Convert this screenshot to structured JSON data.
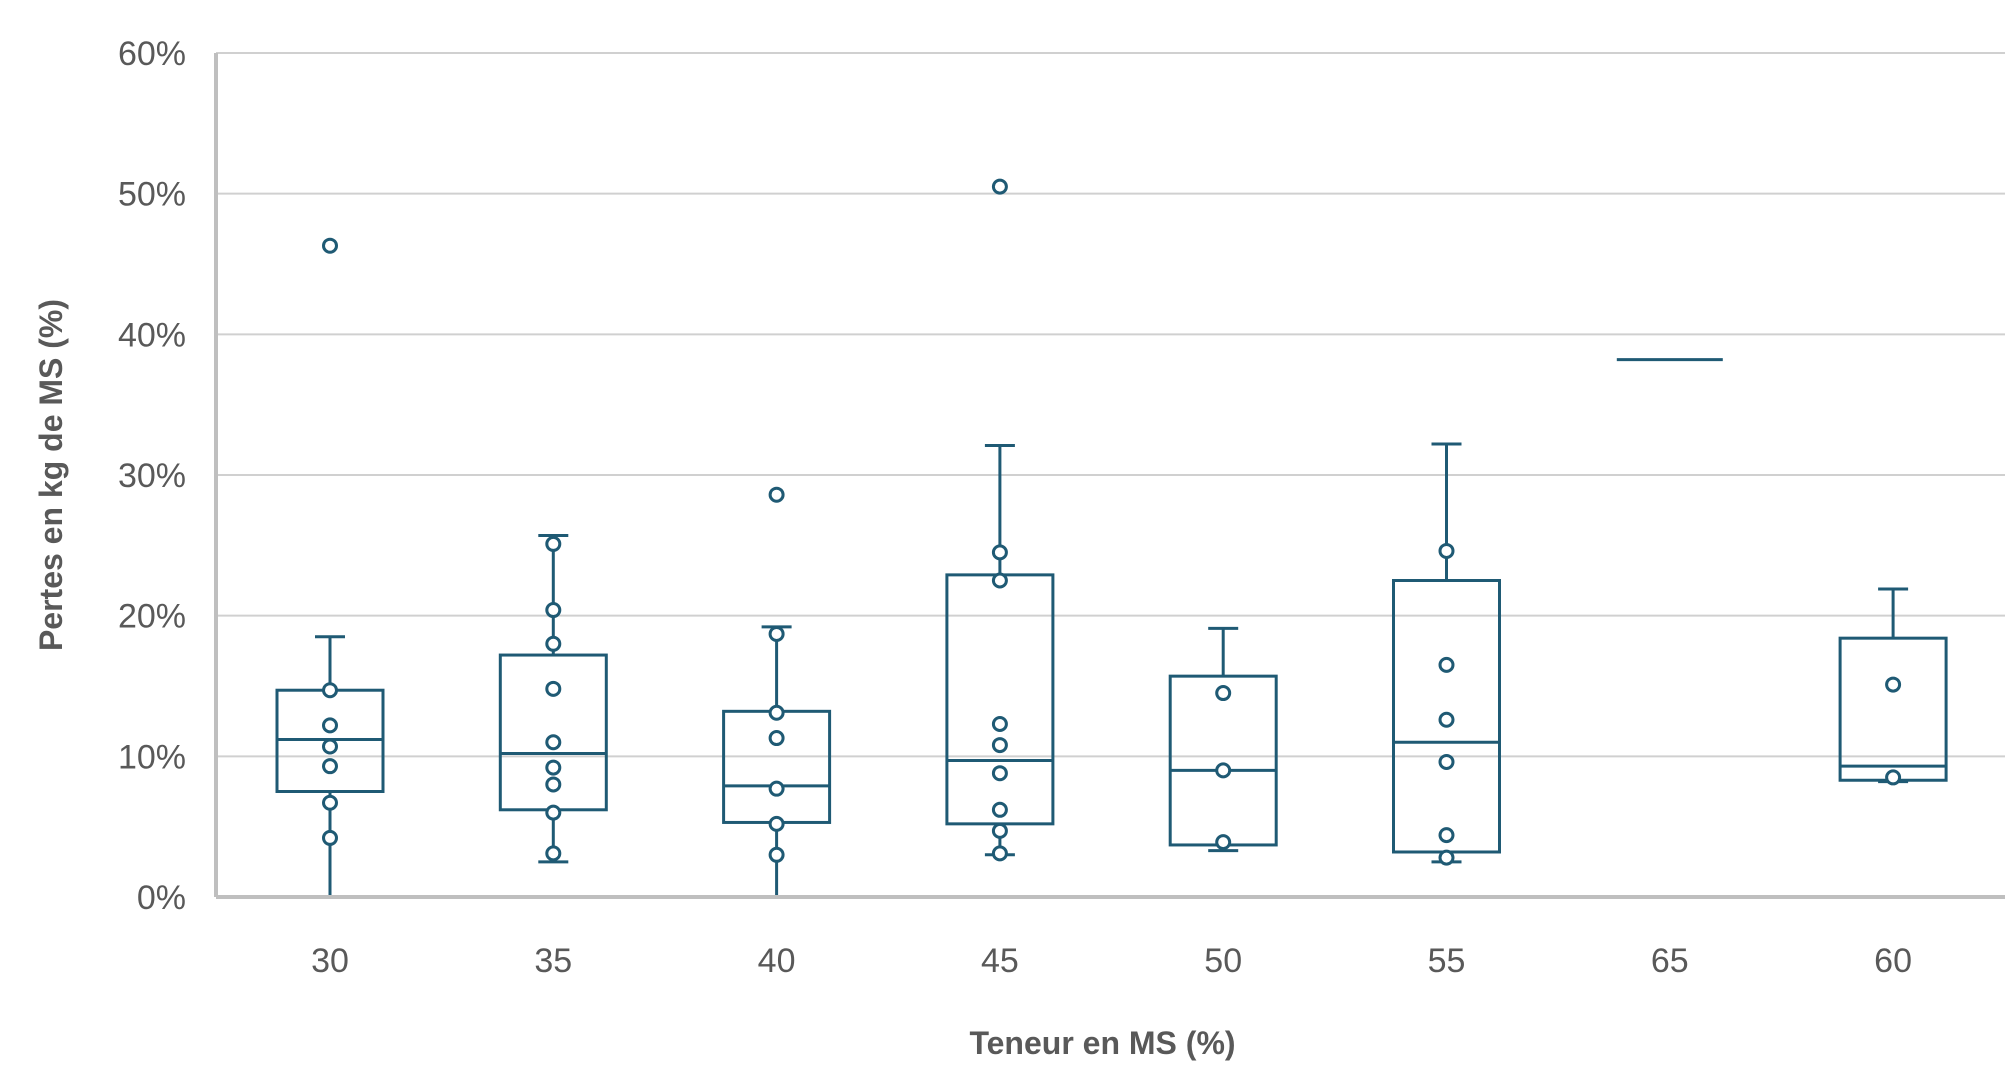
{
  "chart_data": {
    "type": "box",
    "title": "",
    "xlabel": "Teneur en MS (%)",
    "ylabel": "Pertes en kg de MS (%)",
    "ylim": [
      0,
      0.6
    ],
    "yticks": [
      0,
      0.1,
      0.2,
      0.3,
      0.4,
      0.5,
      0.6
    ],
    "ytick_labels": [
      "0%",
      "10%",
      "20%",
      "30%",
      "40%",
      "50%",
      "60%"
    ],
    "grid": true,
    "legend": "none",
    "color": "#1f5a74",
    "categories": [
      "30",
      "35",
      "40",
      "45",
      "50",
      "55",
      "65",
      "60"
    ],
    "boxes": [
      {
        "whisker_low": 0.0,
        "q1": 0.075,
        "median": 0.112,
        "q3": 0.147,
        "whisker_high": 0.185,
        "points": [
          0.042,
          0.067,
          0.093,
          0.107,
          0.122,
          0.147,
          0.463
        ]
      },
      {
        "whisker_low": 0.025,
        "q1": 0.062,
        "median": 0.102,
        "q3": 0.172,
        "whisker_high": 0.257,
        "points": [
          0.031,
          0.06,
          0.08,
          0.092,
          0.11,
          0.148,
          0.18,
          0.204,
          0.251
        ]
      },
      {
        "whisker_low": 0.0,
        "q1": 0.053,
        "median": 0.079,
        "q3": 0.132,
        "whisker_high": 0.192,
        "points": [
          0.03,
          0.052,
          0.077,
          0.113,
          0.131,
          0.187,
          0.286
        ]
      },
      {
        "whisker_low": 0.03,
        "q1": 0.052,
        "median": 0.097,
        "q3": 0.229,
        "whisker_high": 0.321,
        "points": [
          0.031,
          0.047,
          0.062,
          0.088,
          0.108,
          0.123,
          0.225,
          0.245,
          0.505
        ]
      },
      {
        "whisker_low": 0.033,
        "q1": 0.037,
        "median": 0.09,
        "q3": 0.157,
        "whisker_high": 0.191,
        "points": [
          0.039,
          0.09,
          0.145
        ]
      },
      {
        "whisker_low": 0.025,
        "q1": 0.032,
        "median": 0.11,
        "q3": 0.225,
        "whisker_high": 0.322,
        "points": [
          0.028,
          0.044,
          0.096,
          0.126,
          0.165,
          0.246
        ]
      },
      {
        "whisker_low": 0.382,
        "q1": 0.382,
        "median": 0.382,
        "q3": 0.382,
        "whisker_high": 0.382,
        "points": []
      },
      {
        "whisker_low": 0.082,
        "q1": 0.083,
        "median": 0.093,
        "q3": 0.184,
        "whisker_high": 0.219,
        "points": [
          0.085,
          0.151
        ]
      }
    ]
  }
}
